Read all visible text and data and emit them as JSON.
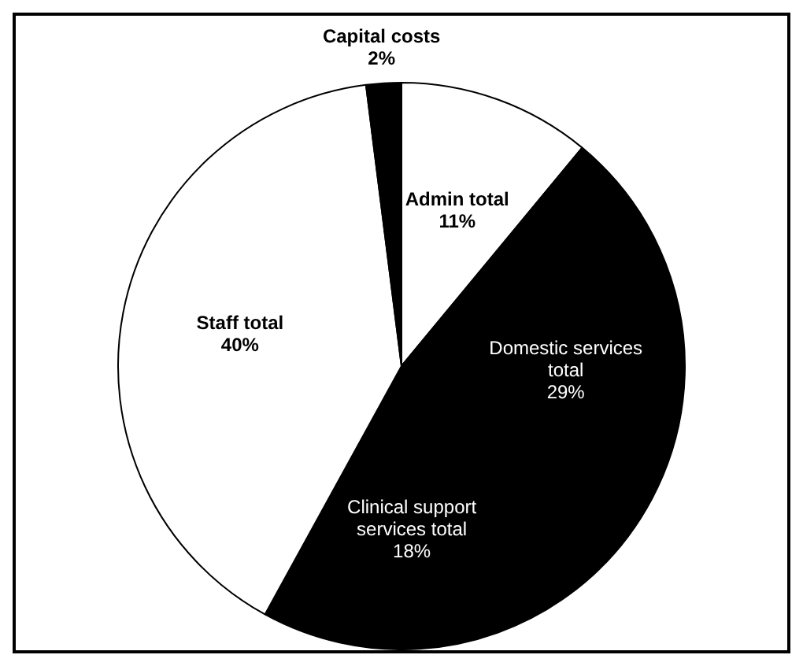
{
  "chart_data": {
    "type": "pie",
    "categories": [
      "Admin total",
      "Domestic services total",
      "Clinical support services total",
      "Staff total",
      "Capital costs"
    ],
    "values": [
      11,
      29,
      18,
      40,
      2
    ],
    "colors": [
      "#ffffff",
      "#000000",
      "#000000",
      "#ffffff",
      "#000000"
    ],
    "value_labels": [
      "11%",
      "29%",
      "18%",
      "40%",
      "2%"
    ],
    "legend": false
  }
}
